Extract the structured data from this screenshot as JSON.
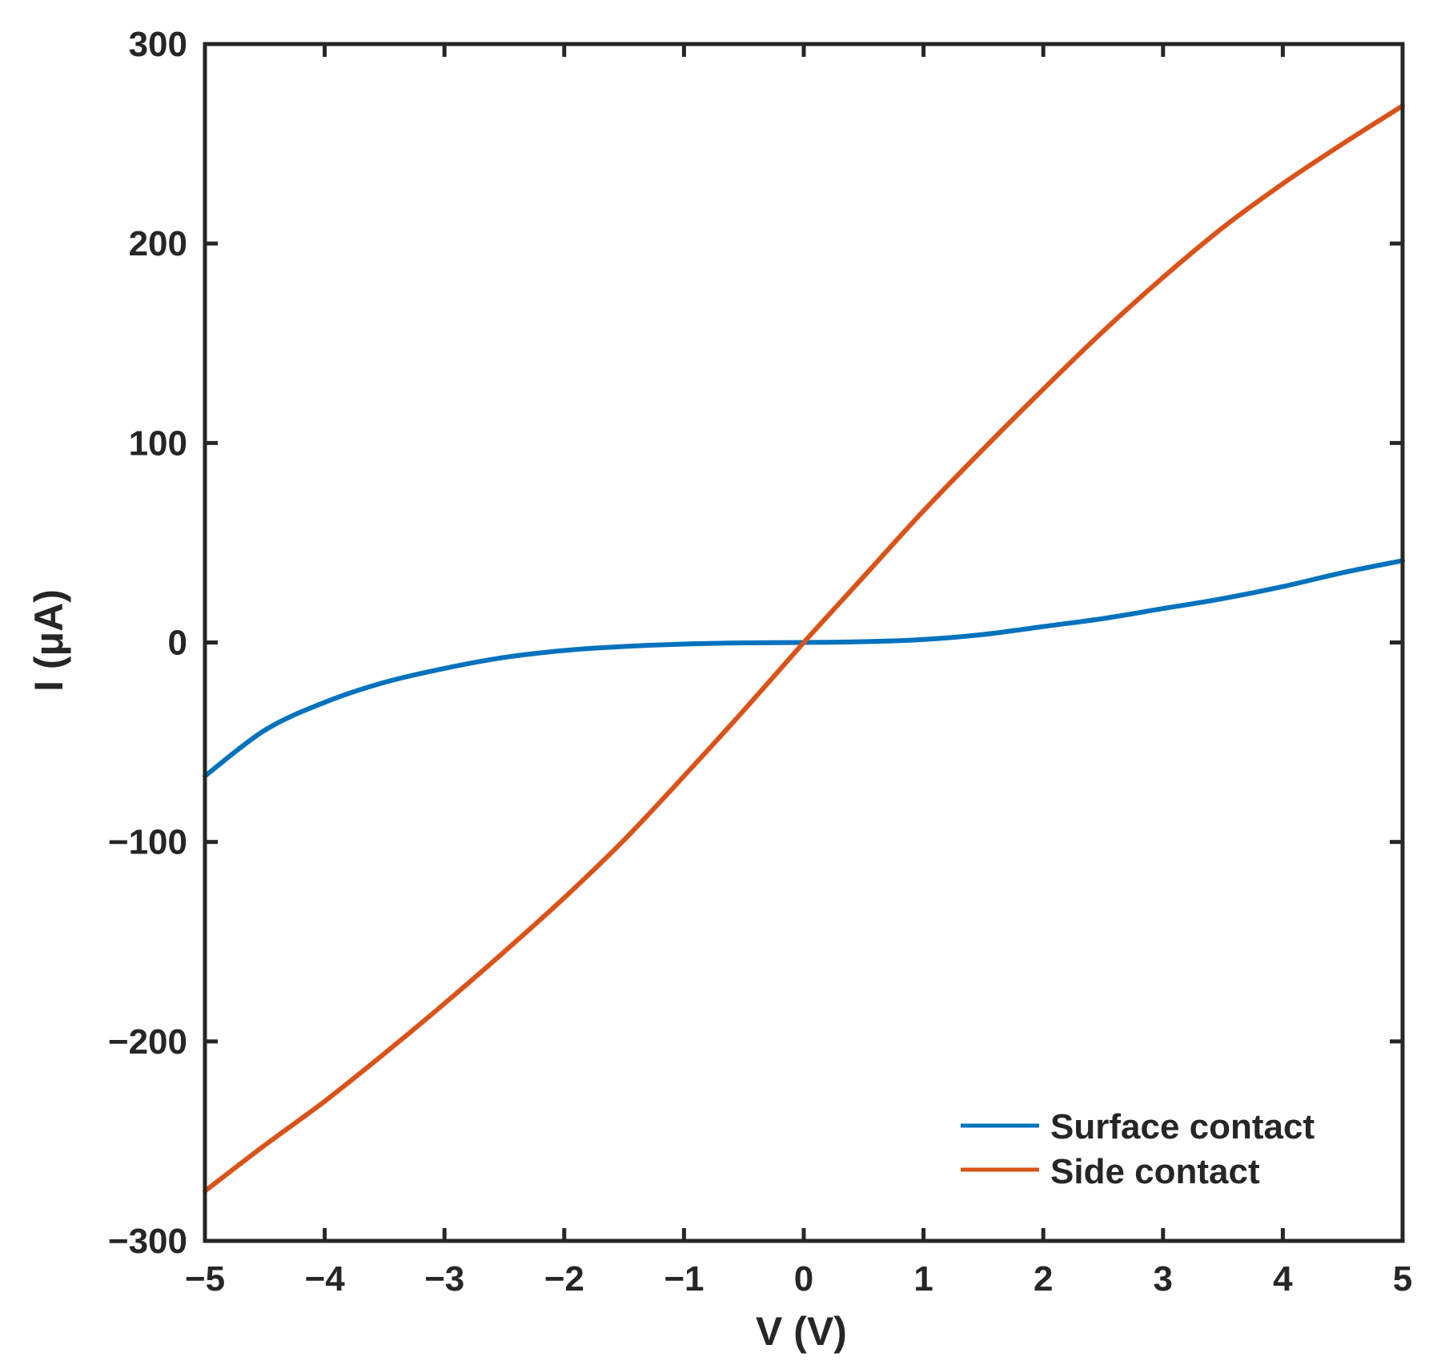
{
  "chart_data": {
    "type": "line",
    "title": "",
    "xlabel": "V (V)",
    "ylabel": "I (μA)",
    "xlim": [
      -5,
      5
    ],
    "ylim": [
      -300,
      300
    ],
    "xticks": [
      -5,
      -4,
      -3,
      -2,
      -1,
      0,
      1,
      2,
      3,
      4,
      5
    ],
    "yticks": [
      -300,
      -200,
      -100,
      0,
      100,
      200,
      300
    ],
    "xtick_labels": [
      "−5",
      "−4",
      "−3",
      "−2",
      "−1",
      "0",
      "1",
      "2",
      "3",
      "4",
      "5"
    ],
    "ytick_labels": [
      "−300",
      "−200",
      "−100",
      "0",
      "100",
      "200",
      "300"
    ],
    "grid": false,
    "legend_position": "bottom-right",
    "series": [
      {
        "name": "Surface contact",
        "color": "#0072BD",
        "x": [
          -5,
          -4.5,
          -4,
          -3.5,
          -3,
          -2.5,
          -2,
          -1.5,
          -1,
          -0.5,
          0,
          0.5,
          1,
          1.5,
          2,
          2.5,
          3,
          3.5,
          4,
          4.5,
          5
        ],
        "y": [
          -67,
          -44,
          -30,
          -20,
          -13,
          -7.5,
          -4,
          -2,
          -0.8,
          -0.2,
          0,
          0.4,
          1.5,
          4,
          8,
          12,
          17,
          22,
          28,
          35,
          41
        ]
      },
      {
        "name": "Side contact",
        "color": "#D95319",
        "x": [
          -5,
          -4.5,
          -4,
          -3.5,
          -3,
          -2.5,
          -2,
          -1.5,
          -1,
          -0.5,
          0,
          0.5,
          1,
          1.5,
          2,
          2.5,
          3,
          3.5,
          4,
          4.5,
          5
        ],
        "y": [
          -275,
          -252,
          -230,
          -206,
          -181,
          -155,
          -128,
          -99,
          -67,
          -34,
          0,
          33,
          66,
          97,
          127,
          156,
          183,
          208,
          230,
          250,
          269
        ]
      }
    ]
  }
}
